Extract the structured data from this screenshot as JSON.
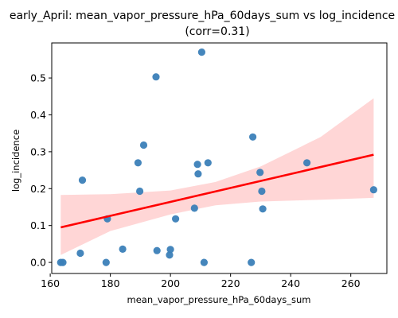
{
  "chart_data": {
    "type": "scatter",
    "title": "early_April: mean_vapor_pressure_hPa_60days_sum vs log_incidence",
    "subtitle": "(corr=0.31)",
    "xlabel": "mean_vapor_pressure_hPa_60days_sum",
    "ylabel": "log_incidence",
    "xlim": [
      160.5,
      272
    ],
    "ylim": [
      -0.03,
      0.595
    ],
    "xticks": [
      160,
      180,
      200,
      220,
      240,
      260
    ],
    "yticks": [
      0.0,
      0.1,
      0.2,
      0.3,
      0.4,
      0.5
    ],
    "xtick_labels": [
      "160",
      "180",
      "200",
      "220",
      "240",
      "260"
    ],
    "ytick_labels": [
      "0.0",
      "0.1",
      "0.2",
      "0.3",
      "0.4",
      "0.5"
    ],
    "grid": false,
    "legend": "none",
    "points": {
      "x": [
        163.5,
        164.2,
        170.0,
        170.7,
        178.6,
        179.0,
        184.1,
        189.2,
        189.8,
        191.1,
        195.2,
        195.5,
        199.7,
        200.0,
        201.7,
        208.0,
        209.0,
        209.2,
        210.4,
        211.2,
        212.5,
        226.9,
        227.4,
        229.8,
        230.4,
        230.7,
        245.4,
        267.6
      ],
      "y": [
        0.0,
        0.0,
        0.025,
        0.223,
        0.0,
        0.118,
        0.036,
        0.27,
        0.193,
        0.318,
        0.503,
        0.032,
        0.02,
        0.035,
        0.118,
        0.147,
        0.266,
        0.24,
        0.57,
        0.0,
        0.27,
        0.0,
        0.34,
        0.244,
        0.193,
        0.145,
        0.27,
        0.197
      ]
    },
    "regression": {
      "x_range": [
        163.5,
        267.6
      ],
      "y_start": 0.095,
      "y_end": 0.292
    },
    "confidence_band": {
      "x": [
        163.5,
        180,
        200,
        215,
        230,
        250,
        267.6
      ],
      "lower": [
        0.02,
        0.085,
        0.13,
        0.155,
        0.165,
        0.17,
        0.175
      ],
      "upper": [
        0.183,
        0.185,
        0.195,
        0.218,
        0.26,
        0.34,
        0.445
      ]
    },
    "colors": {
      "points": "#3b7fb8",
      "line": "#ff0000",
      "band": "#ffd6d6"
    }
  }
}
